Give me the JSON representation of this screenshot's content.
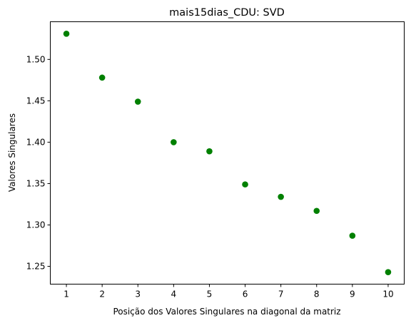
{
  "chart_data": {
    "type": "scatter",
    "title": "mais15dias_CDU: SVD",
    "xlabel": "Posição dos Valores Singulares na diagonal da matriz",
    "ylabel": "Valores Singulares",
    "x": [
      1,
      2,
      3,
      4,
      5,
      6,
      7,
      8,
      9,
      10
    ],
    "y": [
      1.531,
      1.478,
      1.449,
      1.4,
      1.389,
      1.349,
      1.334,
      1.317,
      1.287,
      1.243
    ],
    "xlim": [
      0.55,
      10.45
    ],
    "ylim": [
      1.2285,
      1.5455
    ],
    "xticks": [
      1,
      2,
      3,
      4,
      5,
      6,
      7,
      8,
      9,
      10
    ],
    "xtick_labels": [
      "1",
      "2",
      "3",
      "4",
      "5",
      "6",
      "7",
      "8",
      "9",
      "10"
    ],
    "yticks": [
      1.25,
      1.3,
      1.35,
      1.4,
      1.45,
      1.5
    ],
    "ytick_labels": [
      "1.25",
      "1.30",
      "1.35",
      "1.40",
      "1.45",
      "1.50"
    ],
    "marker_color": "#008000",
    "grid": false,
    "legend": "none"
  }
}
